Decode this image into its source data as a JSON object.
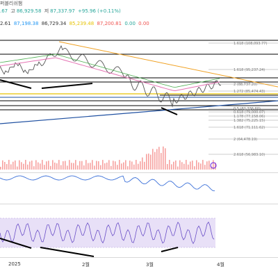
{
  "header": {
    "line1": {
      "title": "퍼블리쉬챔",
      "ohlc_prefix": ".67",
      "high_label": "고",
      "high_value": "86,929.58",
      "low_label": "저",
      "low_value": "87,337.97",
      "change": "+95.96 (+0.11%)"
    },
    "line2": {
      "v1": "2.61",
      "v2": "87,198.38",
      "v3": "86,729.34",
      "v4": "85,239.48",
      "v5": "87,200.81",
      "v6": "0.00",
      "v7": "0.00"
    }
  },
  "fib_levels": [
    {
      "ratio": "1.618",
      "price": "(108,093.77)"
    },
    {
      "ratio": "1.618",
      "price": "(95,237.24)"
    },
    {
      "ratio": "2",
      "price": "(88,737.20)"
    },
    {
      "ratio": "1.272",
      "price": "(85,474.43)"
    },
    {
      "ratio": "0.5",
      "price": "(82,336.60)"
    },
    {
      "ratio": "0.618",
      "price": "(79,000.07)"
    },
    {
      "ratio": "1.178",
      "price": "(77,158.06)"
    },
    {
      "ratio": "1.382",
      "price": "(75,225.15)"
    },
    {
      "ratio": "1.618",
      "price": "(71,111.62)"
    },
    {
      "ratio": "2",
      "price": "(64,478.19)"
    },
    {
      "ratio": "2.618",
      "price": "(56,983.10)"
    }
  ],
  "x_axis": {
    "labels": [
      "2025",
      "2월",
      "3월",
      "4월"
    ]
  },
  "colors": {
    "background": "#ffffff",
    "candle_up": "#26a69a",
    "candle_down": "#ef5350",
    "trendline_blue": "#1e4fa0",
    "trendline_orange": "#f0a020",
    "fib_line": "#9e9e9e",
    "horizontal_line": "#000000",
    "ma_pink": "#e573b4",
    "ma_green": "#4caf50",
    "ma_yellow": "#e6c200",
    "rsi_band": "#e8e0f7",
    "rsi_line": "#6a4fc7",
    "osc_line": "#3a6fd8",
    "volume": "#ef5350"
  }
}
